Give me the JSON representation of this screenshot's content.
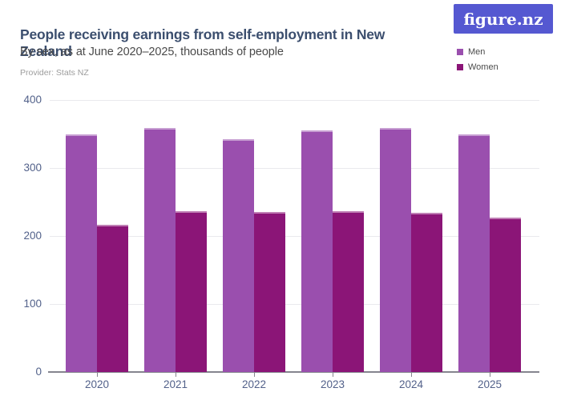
{
  "logo": {
    "text": "figure.nz",
    "background_color": "#5558d1",
    "text_color": "#ffffff"
  },
  "chart_data": {
    "type": "bar",
    "title": "People receiving earnings from self-employment in New Zealand",
    "subtitle": "By sex, as at June 2020–2025, thousands of people",
    "provider": "Provider: Stats NZ",
    "categories": [
      "2020",
      "2021",
      "2022",
      "2023",
      "2024",
      "2025"
    ],
    "series": [
      {
        "name": "Men",
        "color": "#9a4fae",
        "cap_color": "#c9a2d8",
        "values": [
          349,
          359,
          342,
          355,
          359,
          349
        ]
      },
      {
        "name": "Women",
        "color": "#8b1577",
        "cap_color": "#b express",
        "values": [
          216,
          236,
          235,
          237,
          234,
          227
        ]
      }
    ],
    "xlabel": "",
    "ylabel": "",
    "ylim": [
      0,
      400
    ],
    "yticks": [
      0,
      100,
      200,
      300,
      400
    ],
    "grid": true,
    "legend_position": "top-right",
    "axis_label_color": "#52618a",
    "gridline_color": "#e9e9ed",
    "baseline_color": "#85858e"
  }
}
